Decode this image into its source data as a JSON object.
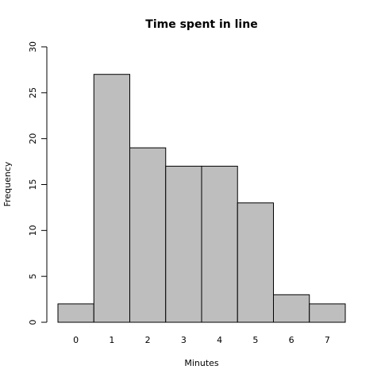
{
  "chart_data": {
    "type": "bar",
    "title": "Time spent in line",
    "x_label": "Minutes",
    "y_label": "Frequency",
    "categories": [
      "0",
      "1",
      "2",
      "3",
      "4",
      "5",
      "6",
      "7"
    ],
    "values": [
      2,
      27,
      19,
      17,
      17,
      13,
      3,
      2
    ],
    "color": "#bebebe",
    "ylim": [
      0,
      30
    ],
    "yticks": [
      0,
      5,
      10,
      15,
      20,
      25,
      30
    ],
    "grid": false
  }
}
